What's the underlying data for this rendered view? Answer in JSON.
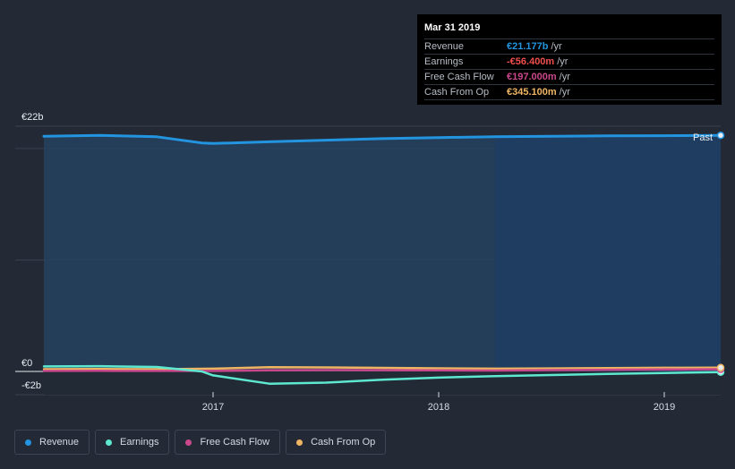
{
  "chart_data": {
    "type": "area",
    "currency": "€",
    "y_axis_labels": {
      "top": "€22b",
      "zero": "€0",
      "bottom": "-€2b"
    },
    "x_tick_labels": [
      "2017",
      "2018",
      "2019"
    ],
    "x_ticks": [
      2017.0,
      2018.0,
      2019.0
    ],
    "xlim": [
      2016.12,
      2019.25
    ],
    "ylim": [
      -2.2,
      22.5
    ],
    "past_label": "Past",
    "past_since": 2018.25,
    "series": [
      {
        "name": "Revenue",
        "color": "#2394df",
        "fill": true,
        "x": [
          2016.25,
          2016.5,
          2016.75,
          2016.95,
          2017.0,
          2017.25,
          2017.5,
          2017.75,
          2018.0,
          2018.25,
          2018.5,
          2018.75,
          2019.0,
          2019.25
        ],
        "y": [
          21.1,
          21.18,
          21.05,
          20.5,
          20.45,
          20.6,
          20.75,
          20.88,
          20.98,
          21.05,
          21.1,
          21.13,
          21.15,
          21.177
        ]
      },
      {
        "name": "Earnings",
        "color": "#5ee8d0",
        "x": [
          2016.25,
          2016.5,
          2016.75,
          2016.95,
          2017.0,
          2017.25,
          2017.5,
          2017.75,
          2018.0,
          2018.25,
          2018.5,
          2018.75,
          2019.0,
          2019.25
        ],
        "y": [
          0.45,
          0.47,
          0.4,
          0.0,
          -0.35,
          -1.1,
          -1.0,
          -0.75,
          -0.55,
          -0.42,
          -0.32,
          -0.22,
          -0.14,
          -0.0564
        ]
      },
      {
        "name": "Free Cash Flow",
        "color": "#c9488c",
        "x": [
          2016.25,
          2016.5,
          2016.75,
          2017.0,
          2017.25,
          2017.5,
          2017.75,
          2018.0,
          2018.25,
          2018.5,
          2018.75,
          2019.0,
          2019.25
        ],
        "y": [
          0.05,
          0.06,
          0.05,
          0.05,
          0.1,
          0.12,
          0.11,
          0.1,
          0.08,
          0.12,
          0.15,
          0.18,
          0.197
        ]
      },
      {
        "name": "Cash From Op",
        "color": "#efb562",
        "x": [
          2016.25,
          2016.5,
          2016.75,
          2017.0,
          2017.25,
          2017.5,
          2017.75,
          2018.0,
          2018.25,
          2018.5,
          2018.75,
          2019.0,
          2019.25
        ],
        "y": [
          0.2,
          0.22,
          0.2,
          0.25,
          0.38,
          0.36,
          0.32,
          0.28,
          0.25,
          0.27,
          0.3,
          0.33,
          0.345
        ]
      }
    ]
  },
  "tooltip": {
    "date": "Mar 31 2019",
    "unit": "/yr",
    "rows": [
      {
        "label": "Revenue",
        "value": "€21.177b",
        "color": "#2394df"
      },
      {
        "label": "Earnings",
        "value": "-€56.400m",
        "color": "#f04d4d"
      },
      {
        "label": "Free Cash Flow",
        "value": "€197.000m",
        "color": "#c9488c"
      },
      {
        "label": "Cash From Op",
        "value": "€345.100m",
        "color": "#efb562"
      }
    ]
  },
  "legend": [
    {
      "label": "Revenue",
      "color": "#2394df"
    },
    {
      "label": "Earnings",
      "color": "#5ee8d0"
    },
    {
      "label": "Free Cash Flow",
      "color": "#c9488c"
    },
    {
      "label": "Cash From Op",
      "color": "#efb562"
    }
  ]
}
